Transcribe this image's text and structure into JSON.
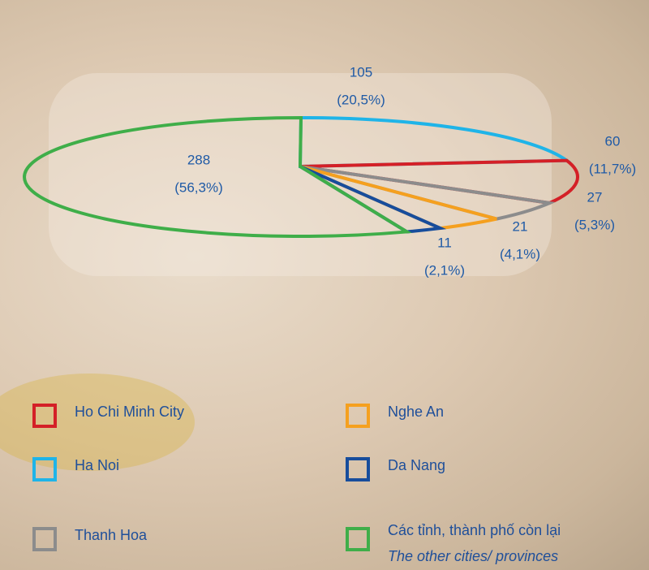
{
  "chart_data": {
    "type": "pie",
    "categories": [
      "Ho Chi Minh City",
      "Ha Noi",
      "Thanh Hoa",
      "Nghe An",
      "Da Nang",
      "Các tỉnh, thành phố còn lại"
    ],
    "legend_note": "The other cities/ provinces",
    "values": [
      60,
      105,
      27,
      21,
      11,
      288
    ],
    "percent_labels": [
      "(11,7%)",
      "(20,5%)",
      "(5,3%)",
      "(4,1%)",
      "(2,1%)",
      "(56,3%)"
    ],
    "colors": [
      "#d42027",
      "#1fb4e8",
      "#8c8c8c",
      "#f5a01f",
      "#174d9c",
      "#3fae49"
    ]
  }
}
